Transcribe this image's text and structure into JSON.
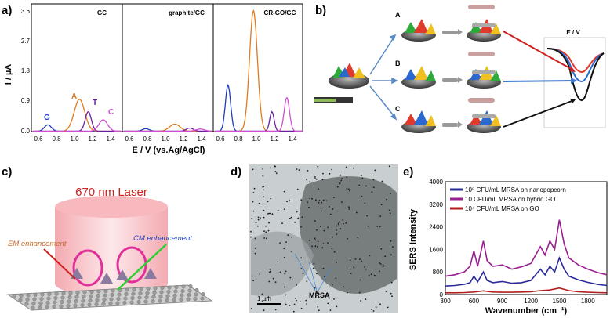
{
  "figure": {
    "panel_labels": [
      "a)",
      "b)",
      "c)",
      "d)",
      "e)"
    ]
  },
  "panel_a": {
    "ylabel": "I / µA",
    "xlabel": "E / V (vs.Ag/AgCl)",
    "sub_titles": [
      "GC",
      "graphite/GC",
      "CR-GO/GC"
    ],
    "yticks": [
      "0.0",
      "0.9",
      "1.8",
      "2.7",
      "3.6"
    ],
    "xticks": [
      "0.6",
      "0.8",
      "1.0",
      "1.2",
      "1.4"
    ],
    "peak_labels": [
      {
        "text": "G",
        "color": "#1f3bbf"
      },
      {
        "text": "A",
        "color": "#e07a1f"
      },
      {
        "text": "T",
        "color": "#6a1fa0"
      },
      {
        "text": "C",
        "color": "#d04fd0"
      }
    ]
  },
  "panel_b": {
    "branch_labels": [
      "A",
      "B",
      "C"
    ],
    "inset_label": "E / V"
  },
  "panel_c": {
    "laser_label": "670 nm Laser",
    "em_label": "EM enhancement",
    "cm_label": "CM enhancement"
  },
  "panel_d": {
    "scale_label": "1 µm",
    "target_label": "MRSA"
  },
  "panel_e": {
    "ylabel": "SERS Intensity",
    "xlabel": "Wavenumber (cm⁻¹)",
    "yticks": [
      "0",
      "400",
      "800",
      "1200",
      "1600",
      "2000",
      "2400",
      "2800",
      "3200",
      "3600",
      "4000"
    ],
    "xticks": [
      "300",
      "600",
      "900",
      "1200",
      "1500",
      "1800"
    ],
    "legend": [
      {
        "text": "10⁵ CFU/mL MRSA on nanopopcorn",
        "color": "#2a2a9a"
      },
      {
        "text": "10 CFU/mL MRSA on hybrid GO",
        "color": "#9a1f8f"
      },
      {
        "text": "10⁴ CFU/mL MRSA on GO",
        "color": "#b01f1f"
      }
    ]
  },
  "chart_data": [
    {
      "type": "line",
      "xlabel": "E / V (vs.Ag/AgCl)",
      "ylabel": "I / µA",
      "ylim": [
        0,
        3.6
      ],
      "xlim": [
        0.45,
        1.45
      ],
      "subplots": [
        {
          "title": "GC",
          "series": [
            {
              "color": "#1f3bbf",
              "peaks": [
                {
                  "x": 0.62,
                  "y": 0.18,
                  "w": 0.04
                }
              ]
            },
            {
              "color": "#e07a1f",
              "peaks": [
                {
                  "x": 0.98,
                  "y": 0.9,
                  "w": 0.06
                }
              ]
            },
            {
              "color": "#6a1fa0",
              "peaks": [
                {
                  "x": 1.08,
                  "y": 0.55,
                  "w": 0.035
                }
              ]
            },
            {
              "color": "#d04fd0",
              "peaks": [
                {
                  "x": 1.25,
                  "y": 0.32,
                  "w": 0.05
                }
              ]
            }
          ]
        },
        {
          "title": "graphite/GC",
          "series": [
            {
              "color": "#1f3bbf",
              "peaks": [
                {
                  "x": 0.7,
                  "y": 0.07,
                  "w": 0.04
                }
              ]
            },
            {
              "color": "#e07a1f",
              "peaks": [
                {
                  "x": 1.03,
                  "y": 0.2,
                  "w": 0.06
                }
              ]
            },
            {
              "color": "#6a1fa0",
              "peaks": [
                {
                  "x": 1.2,
                  "y": 0.09,
                  "w": 0.04
                }
              ]
            },
            {
              "color": "#d04fd0",
              "peaks": [
                {
                  "x": 1.32,
                  "y": 0.06,
                  "w": 0.05
                }
              ]
            }
          ]
        },
        {
          "title": "CR-GO/GC",
          "series": [
            {
              "color": "#1f3bbf",
              "peaks": [
                {
                  "x": 0.6,
                  "y": 1.3,
                  "w": 0.03
                }
              ]
            },
            {
              "color": "#e07a1f",
              "peaks": [
                {
                  "x": 0.89,
                  "y": 3.4,
                  "w": 0.045
                }
              ]
            },
            {
              "color": "#6a1fa0",
              "peaks": [
                {
                  "x": 1.1,
                  "y": 0.55,
                  "w": 0.025
                }
              ]
            },
            {
              "color": "#d04fd0",
              "peaks": [
                {
                  "x": 1.27,
                  "y": 0.95,
                  "w": 0.03
                }
              ]
            }
          ]
        }
      ]
    },
    {
      "type": "line",
      "xlabel": "Wavenumber (cm⁻¹)",
      "ylabel": "SERS Intensity",
      "ylim": [
        0,
        4000
      ],
      "xlim": [
        300,
        2000
      ],
      "series": [
        {
          "name": "10⁵ CFU/mL MRSA on nanopopcorn",
          "color": "#2a2a9a",
          "x": [
            300,
            400,
            500,
            560,
            600,
            640,
            700,
            740,
            800,
            900,
            1000,
            1100,
            1200,
            1300,
            1350,
            1400,
            1450,
            1500,
            1550,
            1600,
            1700,
            1800,
            1900,
            2000
          ],
          "y": [
            300,
            320,
            360,
            420,
            650,
            450,
            800,
            500,
            420,
            460,
            400,
            420,
            500,
            900,
            700,
            1000,
            800,
            1300,
            900,
            650,
            520,
            430,
            360,
            320
          ]
        },
        {
          "name": "10 CFU/mL MRSA on hybrid GO",
          "color": "#9a1f8f",
          "x": [
            300,
            400,
            500,
            560,
            600,
            640,
            700,
            740,
            800,
            900,
            1000,
            1100,
            1200,
            1300,
            1350,
            1400,
            1450,
            1500,
            1550,
            1600,
            1700,
            1800,
            1900,
            2000
          ],
          "y": [
            650,
            700,
            800,
            1000,
            1550,
            1000,
            1900,
            1200,
            1000,
            1050,
            900,
            980,
            1100,
            1700,
            1400,
            1900,
            1600,
            2650,
            1800,
            1300,
            1050,
            900,
            780,
            700
          ]
        },
        {
          "name": "10⁴ CFU/mL MRSA on GO",
          "color": "#b01f1f",
          "x": [
            300,
            400,
            500,
            600,
            700,
            800,
            900,
            1000,
            1100,
            1200,
            1300,
            1400,
            1500,
            1600,
            1700,
            1800,
            1900,
            2000
          ],
          "y": [
            60,
            60,
            70,
            90,
            130,
            90,
            80,
            80,
            90,
            100,
            140,
            160,
            230,
            140,
            100,
            80,
            70,
            60
          ]
        }
      ]
    }
  ]
}
